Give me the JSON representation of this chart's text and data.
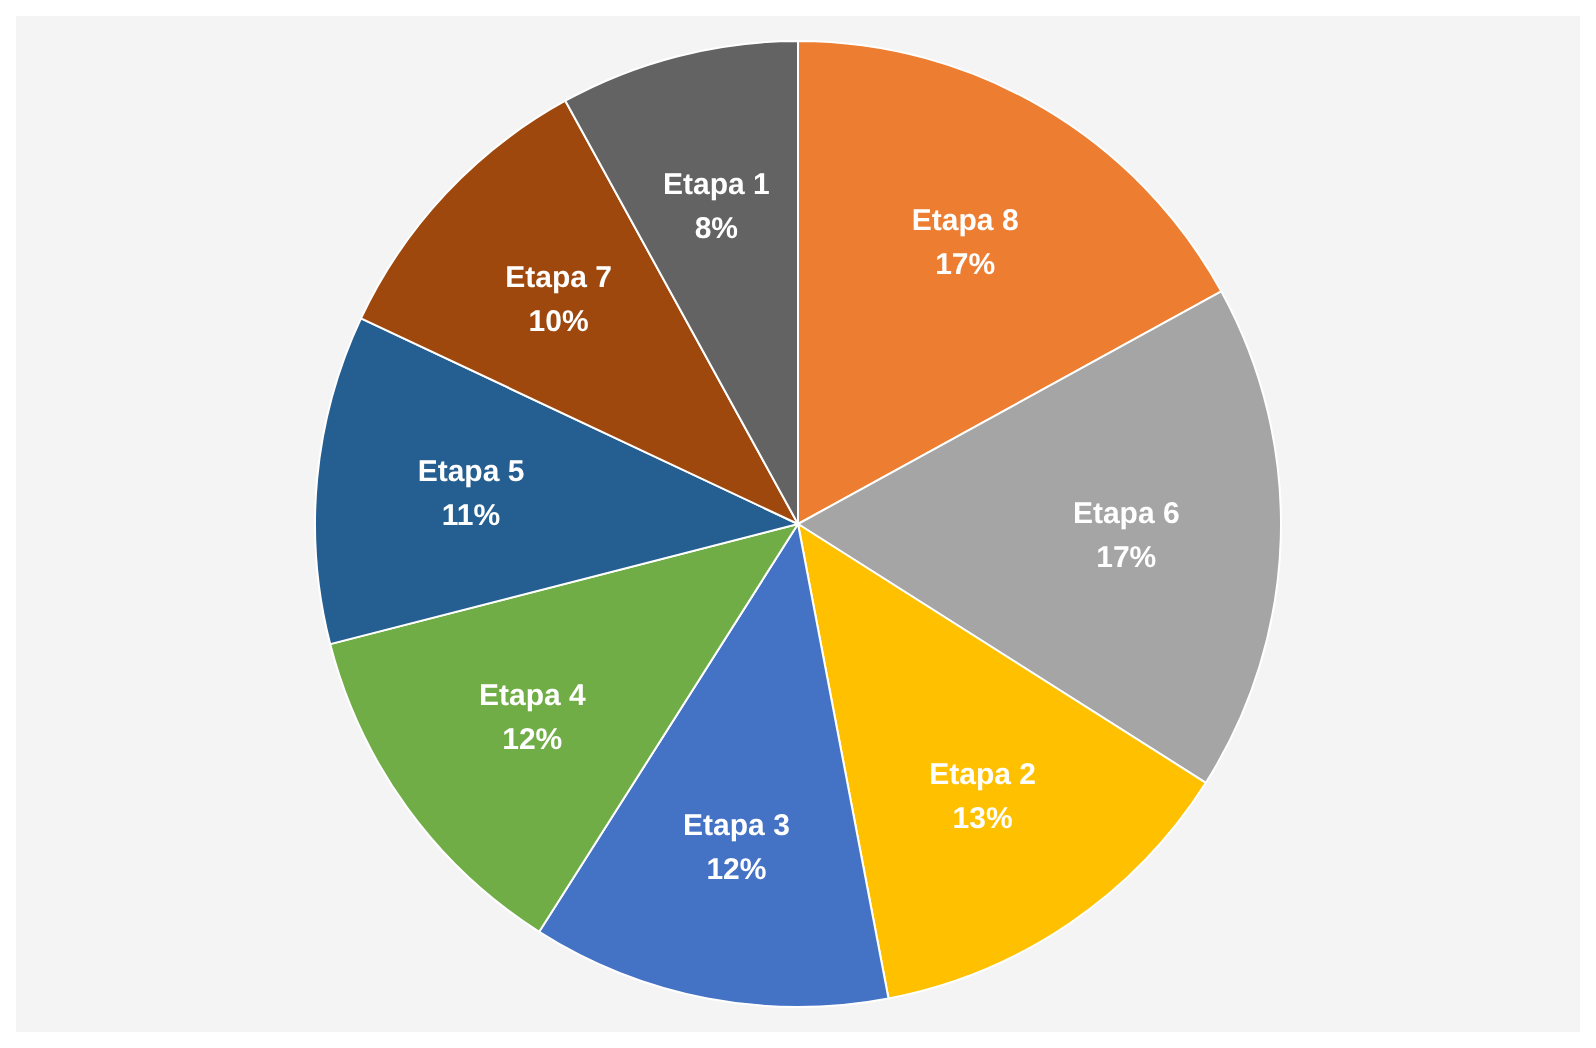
{
  "chart_data": {
    "type": "pie",
    "categories": [
      "Etapa 8",
      "Etapa 6",
      "Etapa 2",
      "Etapa 3",
      "Etapa 4",
      "Etapa 5",
      "Etapa 7",
      "Etapa 1"
    ],
    "values": [
      17,
      17,
      13,
      12,
      12,
      11,
      10,
      8
    ],
    "colors": [
      "#ed7d31",
      "#a5a5a5",
      "#ffc000",
      "#4472c4",
      "#70ad47",
      "#255e91",
      "#9e480e",
      "#636363"
    ],
    "value_labels": [
      "17%",
      "17%",
      "13%",
      "12%",
      "12%",
      "11%",
      "10%",
      "8%"
    ],
    "legend": false
  }
}
